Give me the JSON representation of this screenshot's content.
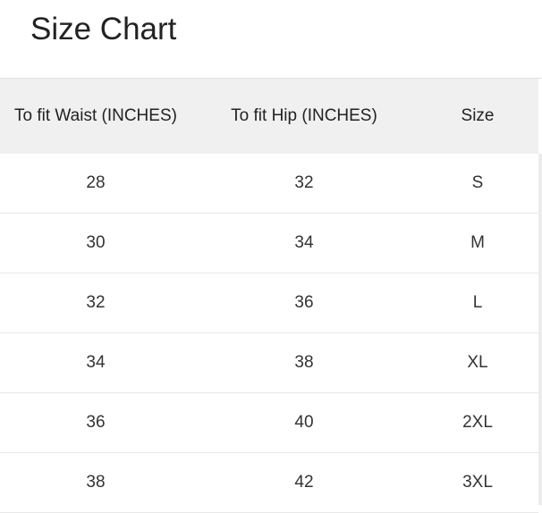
{
  "title": "Size Chart",
  "table": {
    "headers": [
      "To fit Waist (INCHES)",
      "To fit Hip (INCHES)",
      "Size"
    ],
    "rows": [
      [
        "28",
        "32",
        "S"
      ],
      [
        "30",
        "34",
        "M"
      ],
      [
        "32",
        "36",
        "L"
      ],
      [
        "34",
        "38",
        "XL"
      ],
      [
        "36",
        "40",
        "2XL"
      ],
      [
        "38",
        "42",
        "3XL"
      ]
    ]
  }
}
